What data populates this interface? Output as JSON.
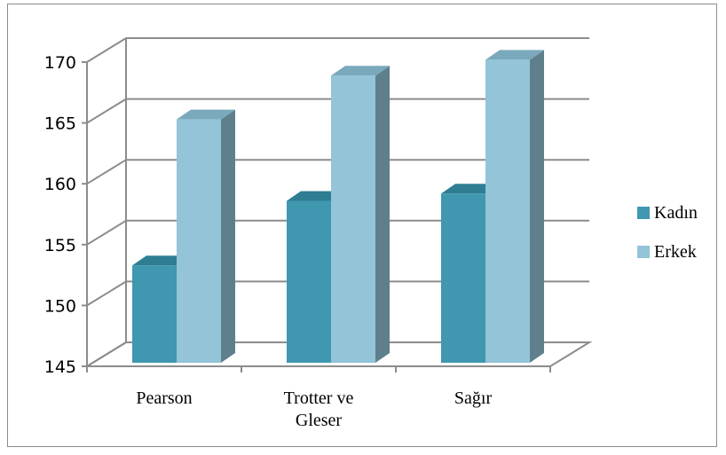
{
  "chart_data": {
    "type": "bar",
    "categories": [
      "Pearson",
      "Trotter ve Gleser",
      "Sağır"
    ],
    "category_lines": [
      [
        "Pearson"
      ],
      [
        "Trotter ve",
        "Gleser"
      ],
      [
        "Sağır"
      ]
    ],
    "series": [
      {
        "name": "Kadın",
        "values": [
          153,
          158.3,
          158.9
        ]
      },
      {
        "name": "Erkek",
        "values": [
          165,
          168.6,
          169.9
        ]
      }
    ],
    "ylim": [
      145,
      170
    ],
    "yticks": [
      "145",
      "150",
      "155",
      "160",
      "165",
      "170"
    ],
    "grid": true,
    "legend": "right",
    "colors": {
      "series_front": [
        "#4097b0",
        "#93c4d8"
      ],
      "series_top": [
        "#2e7d93",
        "#7aa9bc"
      ],
      "series_side": [
        "#2a6a7c",
        "#5f7f8c"
      ],
      "grid": "#8c8c8c",
      "axis": "#8c8c8c"
    }
  }
}
